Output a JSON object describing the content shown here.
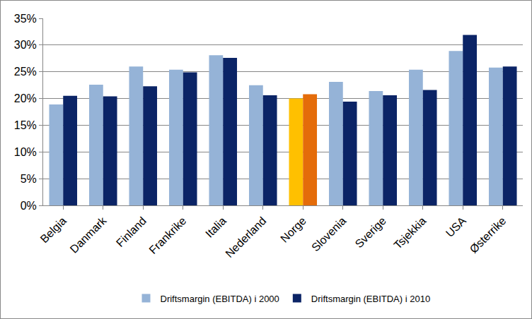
{
  "chart_data": {
    "type": "bar",
    "categories": [
      "Belgia",
      "Danmark",
      "Finland",
      "Frankrike",
      "Italia",
      "Nederland",
      "Norge",
      "Slovenia",
      "Sverige",
      "Tsjekkia",
      "USA",
      "Østerrike"
    ],
    "series": [
      {
        "name": "Driftsmargin (EBITDA) i 2000",
        "color": "#95B3D7",
        "colors": [
          "#95B3D7",
          "#95B3D7",
          "#95B3D7",
          "#95B3D7",
          "#95B3D7",
          "#95B3D7",
          "#FFC000",
          "#95B3D7",
          "#95B3D7",
          "#95B3D7",
          "#95B3D7",
          "#95B3D7"
        ],
        "values": [
          18.9,
          22.6,
          26.0,
          25.4,
          28.1,
          22.5,
          20.0,
          23.1,
          21.4,
          25.4,
          28.9,
          25.8
        ]
      },
      {
        "name": "Driftsmargin (EBITDA) i 2010",
        "color": "#0B2466",
        "colors": [
          "#0B2466",
          "#0B2466",
          "#0B2466",
          "#0B2466",
          "#0B2466",
          "#0B2466",
          "#E46C0A",
          "#0B2466",
          "#0B2466",
          "#0B2466",
          "#0B2466",
          "#0B2466"
        ],
        "values": [
          20.5,
          20.4,
          22.3,
          24.9,
          27.6,
          20.6,
          20.8,
          19.4,
          20.6,
          21.6,
          31.9,
          26.0
        ]
      }
    ],
    "ylim": [
      0,
      35
    ],
    "yticks": [
      {
        "value": 0,
        "label": "0%"
      },
      {
        "value": 5,
        "label": "5%"
      },
      {
        "value": 10,
        "label": "10%"
      },
      {
        "value": 15,
        "label": "15%"
      },
      {
        "value": 20,
        "label": "20%"
      },
      {
        "value": 25,
        "label": "25%"
      },
      {
        "value": 30,
        "label": "30%"
      },
      {
        "value": 35,
        "label": "35%"
      }
    ],
    "grid": true,
    "legend": "bottom"
  }
}
